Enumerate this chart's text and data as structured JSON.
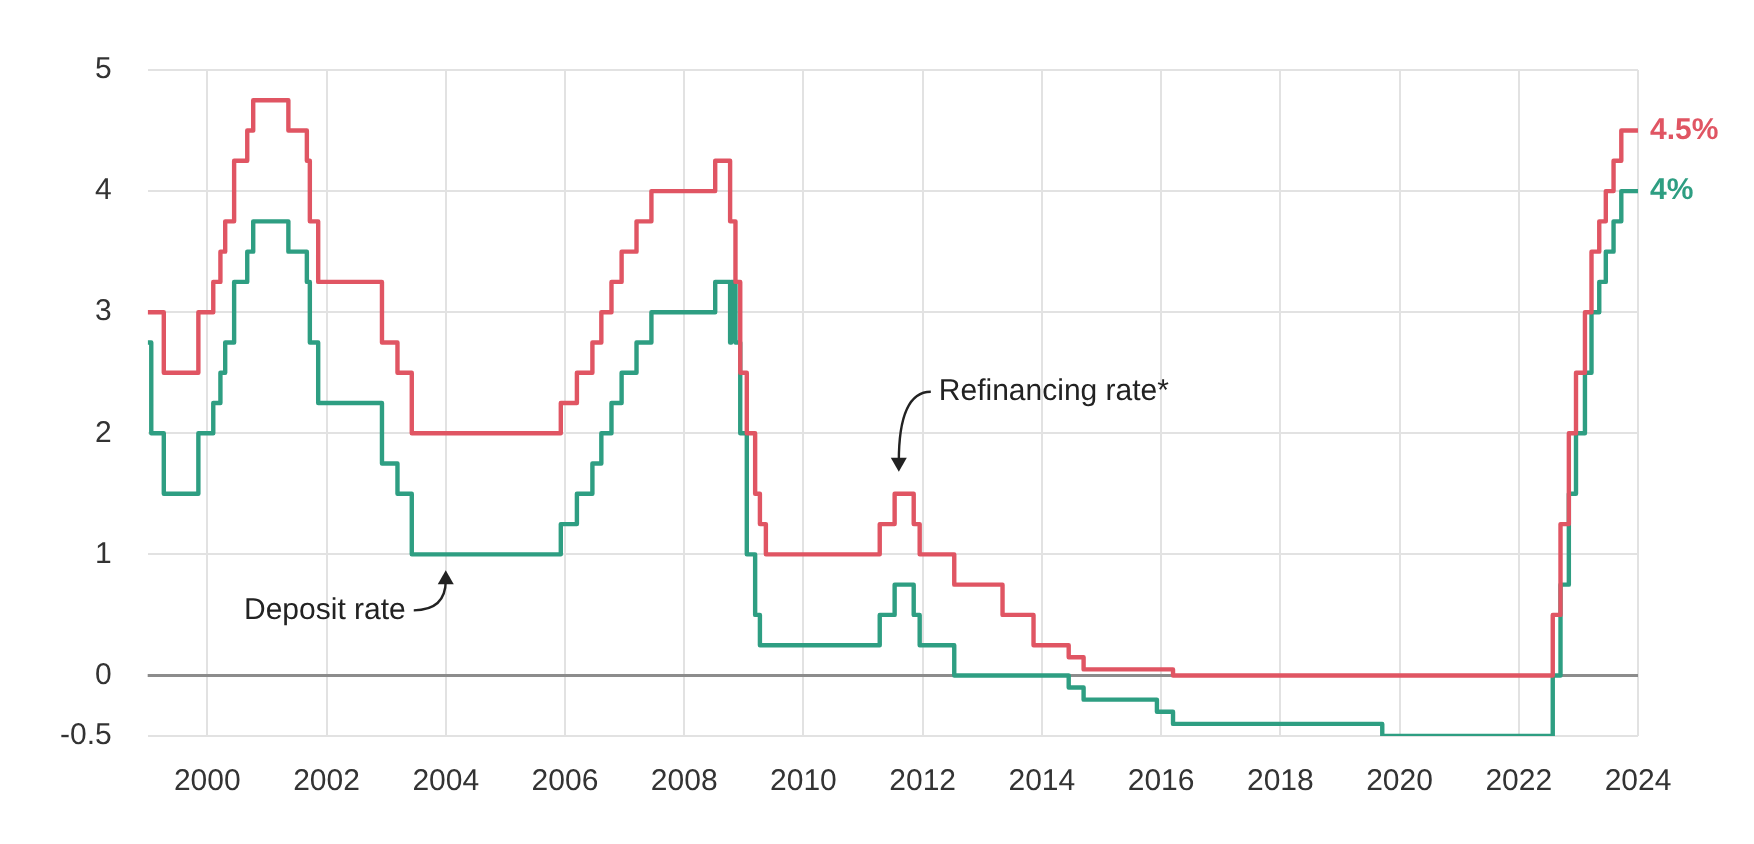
{
  "chart_data": {
    "type": "step",
    "x": [
      1999.0,
      1999.27,
      1999.85,
      2000.1,
      2000.22,
      2000.3,
      2000.45,
      2000.67,
      2000.77,
      2001.36,
      2001.67,
      2001.72,
      2001.86,
      2002.93,
      2003.19,
      2003.43,
      2005.93,
      2006.2,
      2006.46,
      2006.61,
      2006.78,
      2006.95,
      2007.2,
      2007.45,
      2008.52,
      2008.77,
      2008.86,
      2008.94,
      2009.05,
      2009.19,
      2009.27,
      2009.37,
      2011.28,
      2011.53,
      2011.85,
      2011.95,
      2012.53,
      2013.34,
      2013.86,
      2014.45,
      2014.7,
      2016.2,
      2022.57,
      2022.7,
      2022.84,
      2022.96,
      2023.11,
      2023.22,
      2023.35,
      2023.46,
      2023.59,
      2023.72,
      2024.0
    ],
    "series": [
      {
        "color": "#e05563",
        "values": [
          3.0,
          2.5,
          3.0,
          3.25,
          3.5,
          3.75,
          4.25,
          4.5,
          4.75,
          4.5,
          4.25,
          3.75,
          3.25,
          2.75,
          2.5,
          2.0,
          2.25,
          2.5,
          2.75,
          3.0,
          3.25,
          3.5,
          3.75,
          4.0,
          4.25,
          3.75,
          3.25,
          2.5,
          2.0,
          1.5,
          1.25,
          1.0,
          1.25,
          1.5,
          1.25,
          1.0,
          0.75,
          0.5,
          0.25,
          0.15,
          0.05,
          0.0,
          0.5,
          1.25,
          2.0,
          2.5,
          3.0,
          3.5,
          3.75,
          4.0,
          4.25,
          4.5,
          4.5
        ]
      },
      {
        "color": "#2e9e82",
        "x": [
          1999.0,
          1999.06,
          1999.27,
          1999.85,
          2000.1,
          2000.22,
          2000.3,
          2000.45,
          2000.67,
          2000.77,
          2001.36,
          2001.67,
          2001.72,
          2001.86,
          2002.93,
          2003.19,
          2003.43,
          2005.93,
          2006.2,
          2006.46,
          2006.61,
          2006.78,
          2006.95,
          2007.2,
          2007.45,
          2008.52,
          2008.77,
          2008.79,
          2008.86,
          2008.94,
          2009.05,
          2009.19,
          2009.27,
          2011.28,
          2011.53,
          2011.85,
          2011.95,
          2012.53,
          2014.45,
          2014.7,
          2015.93,
          2016.2,
          2019.71,
          2022.57,
          2022.7,
          2022.84,
          2022.96,
          2023.11,
          2023.22,
          2023.35,
          2023.46,
          2023.59,
          2023.72,
          2024.0
        ],
        "values": [
          2.75,
          2.0,
          1.5,
          2.0,
          2.25,
          2.5,
          2.75,
          3.25,
          3.5,
          3.75,
          3.5,
          3.25,
          2.75,
          2.25,
          1.75,
          1.5,
          1.0,
          1.25,
          1.5,
          1.75,
          2.0,
          2.25,
          2.5,
          2.75,
          3.0,
          3.25,
          2.75,
          3.25,
          2.75,
          2.0,
          1.0,
          0.5,
          0.25,
          0.5,
          0.75,
          0.5,
          0.25,
          0.0,
          -0.1,
          -0.2,
          -0.3,
          -0.4,
          -0.5,
          0.0,
          0.75,
          1.5,
          2.0,
          2.5,
          3.0,
          3.25,
          3.5,
          3.75,
          4.0,
          4.0
        ]
      }
    ],
    "xlim": [
      1999,
      2024
    ],
    "xticks": [
      2000,
      2002,
      2004,
      2006,
      2008,
      2010,
      2012,
      2014,
      2016,
      2018,
      2020,
      2022,
      2024
    ],
    "ylim": [
      -0.5,
      5
    ],
    "yticks": [
      -0.5,
      0,
      1,
      2,
      3,
      4,
      5
    ],
    "grid": true,
    "legend": false,
    "ref_lines": [
      {
        "axis": "y",
        "value": 0,
        "color": "#8c8c8c"
      }
    ],
    "annotations": [
      {
        "text": "Refinancing rate*",
        "x": 2011.6,
        "y": 1.55
      },
      {
        "text": "Deposit rate",
        "x": 2004.0,
        "y": 1.0
      },
      {
        "text": "4.5%",
        "x": 2024.0,
        "y": 4.5
      },
      {
        "text": "4%",
        "x": 2024.0,
        "y": 4.0
      }
    ]
  }
}
